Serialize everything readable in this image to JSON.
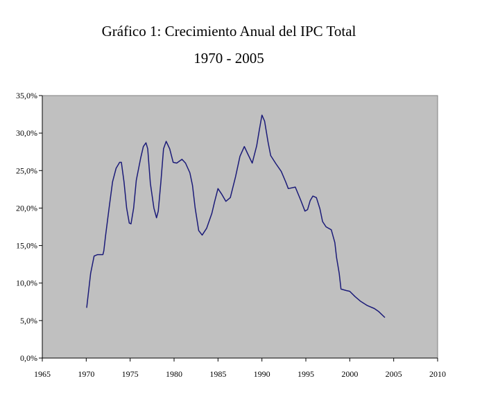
{
  "chart_data": {
    "type": "line",
    "title": "Gráfico 1: Crecimiento Anual del IPC Total",
    "subtitle": "1970 - 2005",
    "xlabel": "",
    "ylabel": "",
    "xlim": [
      1965,
      2010
    ],
    "ylim": [
      0,
      35
    ],
    "x_ticks": [
      "1965",
      "1970",
      "1975",
      "1980",
      "1985",
      "1990",
      "1995",
      "2000",
      "2005",
      "2010"
    ],
    "y_ticks": [
      "0,0%",
      "5,0%",
      "10,0%",
      "15,0%",
      "20,0%",
      "25,0%",
      "30,0%",
      "35,0%"
    ],
    "grid": false,
    "legend": "none",
    "plot_background": "#c0c0c0",
    "line_color": "#1a1a78",
    "series": [
      {
        "name": "IPC Total",
        "x": [
          1970.05,
          1970.5,
          1970.9,
          1971.3,
          1971.9,
          1972.0,
          1972.2,
          1972.6,
          1973.0,
          1973.4,
          1973.8,
          1974.0,
          1974.3,
          1974.6,
          1974.9,
          1975.1,
          1975.4,
          1975.7,
          1976.2,
          1976.5,
          1976.8,
          1977.0,
          1977.3,
          1977.7,
          1978.0,
          1978.2,
          1978.5,
          1978.8,
          1979.1,
          1979.5,
          1979.9,
          1980.3,
          1980.9,
          1981.3,
          1981.8,
          1982.1,
          1982.4,
          1982.8,
          1983.2,
          1983.7,
          1984.3,
          1984.6,
          1985.0,
          1985.4,
          1985.9,
          1986.4,
          1987.0,
          1987.5,
          1988.0,
          1988.4,
          1988.9,
          1989.4,
          1989.7,
          1990.0,
          1990.3,
          1990.7,
          1991.0,
          1991.6,
          1992.2,
          1992.7,
          1993.0,
          1993.8,
          1994.4,
          1994.9,
          1995.2,
          1995.5,
          1995.8,
          1996.2,
          1996.6,
          1996.9,
          1997.3,
          1997.9,
          1998.3,
          1998.5,
          1998.8,
          1999.0,
          1999.6,
          2000.0,
          2000.6,
          2001.2,
          2002.0,
          2002.8,
          2003.3,
          2004.0
        ],
        "y": [
          6.7,
          11.3,
          13.6,
          13.8,
          13.8,
          14.3,
          16.3,
          20.0,
          23.5,
          25.3,
          26.1,
          26.1,
          23.5,
          20.0,
          18.0,
          17.9,
          20.0,
          23.7,
          26.7,
          28.2,
          28.7,
          27.9,
          23.3,
          20.0,
          18.7,
          19.6,
          23.5,
          27.9,
          28.9,
          27.9,
          26.1,
          26.0,
          26.5,
          26.0,
          24.7,
          23.0,
          20.0,
          17.0,
          16.4,
          17.3,
          19.3,
          20.8,
          22.6,
          21.9,
          20.9,
          21.4,
          24.2,
          26.9,
          28.2,
          27.2,
          26.0,
          28.3,
          30.4,
          32.4,
          31.6,
          28.8,
          27.0,
          25.9,
          24.9,
          23.5,
          22.6,
          22.8,
          21.1,
          19.6,
          19.8,
          21.0,
          21.6,
          21.4,
          19.9,
          18.2,
          17.5,
          17.1,
          15.4,
          13.4,
          11.3,
          9.2,
          9.0,
          8.9,
          8.2,
          7.6,
          7.0,
          6.6,
          6.2,
          5.4
        ]
      }
    ]
  }
}
